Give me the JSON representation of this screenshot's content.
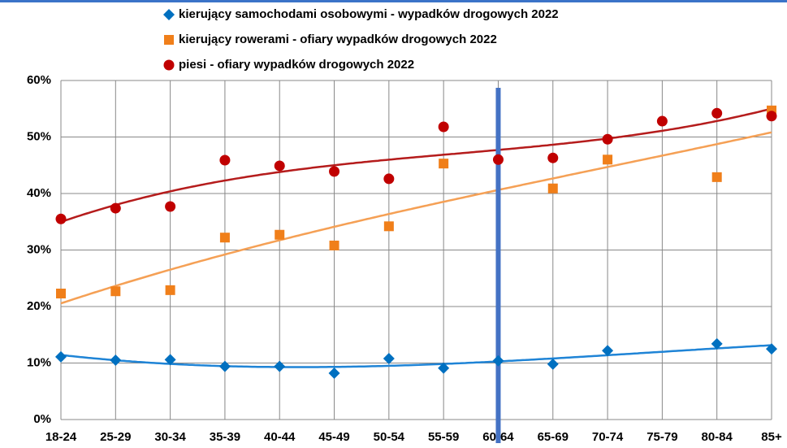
{
  "chart_data": {
    "type": "scatter",
    "categories": [
      "18-24",
      "25-29",
      "30-34",
      "35-39",
      "40-44",
      "45-49",
      "50-54",
      "55-59",
      "60-64",
      "65-69",
      "70-74",
      "75-79",
      "80-84",
      "85+"
    ],
    "series": [
      {
        "name": "kierujący samochodami osobowymi - wypadków drogowych 2022",
        "color": "#0070c0",
        "trend_color": "#1f84d6",
        "marker": "diamond",
        "values": [
          11.1,
          10.5,
          10.6,
          9.4,
          9.4,
          8.2,
          10.8,
          9.1,
          10.4,
          9.8,
          12.2,
          null,
          13.4,
          12.5
        ]
      },
      {
        "name": "kierujący rowerami - ofiary wypadków drogowych 2022",
        "color": "#f07f1a",
        "trend_color": "#f5a055",
        "marker": "square",
        "values": [
          22.3,
          22.7,
          22.9,
          32.2,
          32.7,
          30.8,
          34.2,
          45.3,
          null,
          40.9,
          46.0,
          null,
          42.9,
          54.7
        ]
      },
      {
        "name": "piesi - ofiary wypadków drogowych 2022",
        "color": "#c00000",
        "trend_color": "#b51c1c",
        "marker": "circle",
        "values": [
          35.5,
          37.4,
          37.7,
          45.9,
          44.9,
          43.9,
          42.6,
          51.8,
          46.0,
          46.3,
          49.6,
          52.8,
          54.2,
          53.7
        ]
      }
    ],
    "ylim": [
      0,
      60
    ],
    "yticks": [
      {
        "value": 0,
        "label": "0%"
      },
      {
        "value": 10,
        "label": "10%"
      },
      {
        "value": 20,
        "label": "20%"
      },
      {
        "value": 30,
        "label": "30%"
      },
      {
        "value": 40,
        "label": "40%"
      },
      {
        "value": 50,
        "label": "50%"
      },
      {
        "value": 60,
        "label": "60%"
      }
    ],
    "grid": true,
    "trendline_order": 3,
    "highlight_category": "60-64",
    "highlight_color": "#4472c4"
  }
}
